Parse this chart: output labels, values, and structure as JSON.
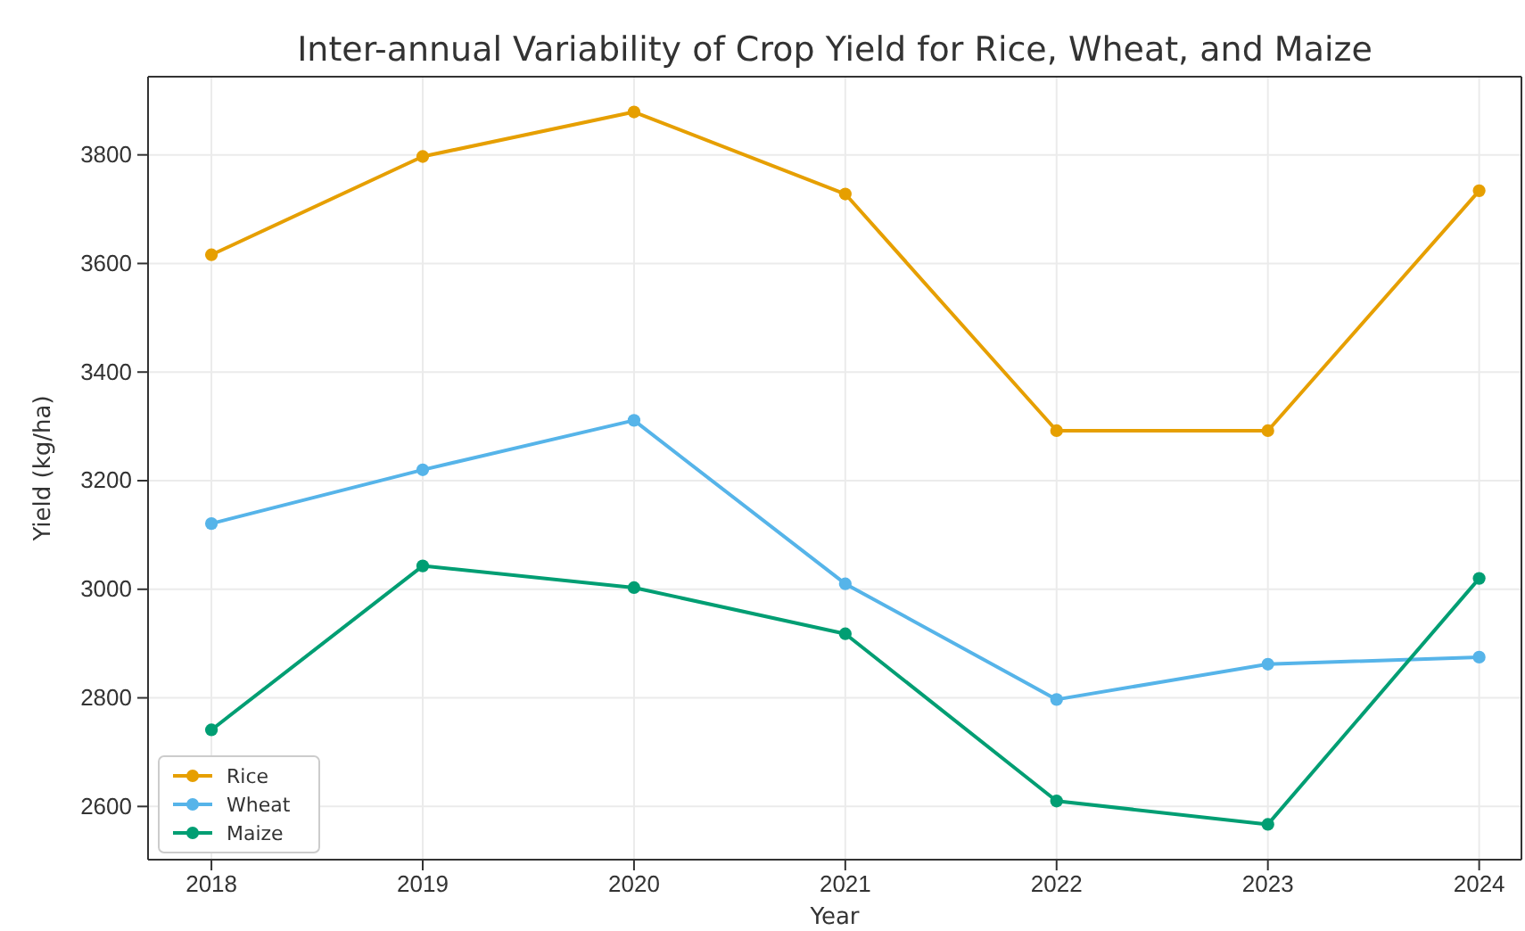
{
  "chart_data": {
    "type": "line",
    "title": "Inter-annual Variability of Crop Yield for Rice, Wheat, and Maize",
    "xlabel": "Year",
    "ylabel": "Yield (kg/ha)",
    "x": [
      2018,
      2019,
      2020,
      2021,
      2022,
      2023,
      2024
    ],
    "xlim": [
      2017.7,
      2024.2
    ],
    "xticks": [
      2018,
      2019,
      2020,
      2021,
      2022,
      2023,
      2024
    ],
    "ylim": [
      2502,
      3944
    ],
    "yticks": [
      2600,
      2800,
      3000,
      3200,
      3400,
      3600,
      3800
    ],
    "grid": true,
    "legend": "bottom left",
    "marker": "circle",
    "line_style": "solid",
    "series": [
      {
        "name": "Rice",
        "color": "#e69f00",
        "values": [
          3616,
          3797,
          3879,
          3728,
          3292,
          3292,
          3734
        ]
      },
      {
        "name": "Wheat",
        "color": "#56b4e9",
        "values": [
          3121,
          3220,
          3311,
          3010,
          2797,
          2862,
          2875
        ]
      },
      {
        "name": "Maize",
        "color": "#009e73",
        "values": [
          2741,
          3043,
          3003,
          2918,
          2610,
          2567,
          3020
        ]
      }
    ]
  }
}
